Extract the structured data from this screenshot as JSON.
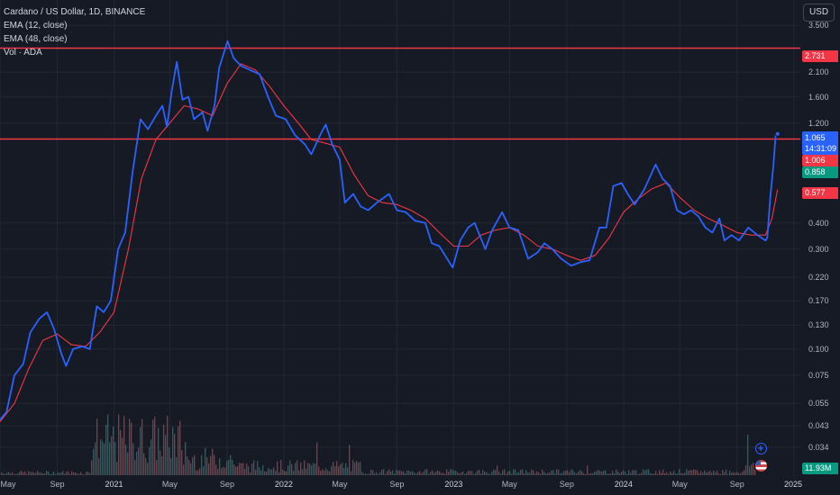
{
  "legend": {
    "title": "Cardano / US Dollar, 1D, BINANCE",
    "ema12": "EMA (12, close)",
    "ema48": "EMA (48, close)",
    "vol": "Vol · ADA"
  },
  "currency": "USD",
  "price_tags": {
    "resistance_upper": "2.731",
    "last_price": "1.065",
    "countdown": "14:31:09",
    "resistance_lower": "1.006",
    "ema12_value": "0.858",
    "ema48_value": "0.577",
    "volume": "11.93M"
  },
  "colors": {
    "background": "#161a25",
    "price_line": "#2962ff",
    "ema48_line": "#f23645",
    "horizontal_lines": "#f23645",
    "volume_up": "#26a69a",
    "volume_down": "#ef5350",
    "ema12_tag": "#089981"
  },
  "icons": [
    "plus-circle-icon",
    "us-flag-icon"
  ],
  "chart_data": {
    "type": "line",
    "title": "Cardano / US Dollar, 1D, BINANCE",
    "scale": "log",
    "ylim": [
      0.025,
      4.2
    ],
    "x_range": [
      "2020-05-01",
      "2025-01-15"
    ],
    "y_ticks": [
      "3.500",
      "2.100",
      "1.600",
      "1.200",
      "0.400",
      "0.300",
      "0.220",
      "0.170",
      "0.130",
      "0.100",
      "0.075",
      "0.055",
      "0.043",
      "0.034"
    ],
    "x_ticks": [
      {
        "label": "May",
        "date": "2020-05-01"
      },
      {
        "label": "Sep",
        "date": "2020-09-01"
      },
      {
        "label": "2021",
        "date": "2021-01-01"
      },
      {
        "label": "May",
        "date": "2021-05-01"
      },
      {
        "label": "Sep",
        "date": "2021-09-01"
      },
      {
        "label": "2022",
        "date": "2022-01-01"
      },
      {
        "label": "May",
        "date": "2022-05-01"
      },
      {
        "label": "Sep",
        "date": "2022-09-01"
      },
      {
        "label": "2023",
        "date": "2023-01-01"
      },
      {
        "label": "May",
        "date": "2023-05-01"
      },
      {
        "label": "Sep",
        "date": "2023-09-01"
      },
      {
        "label": "2024",
        "date": "2024-01-01"
      },
      {
        "label": "May",
        "date": "2024-05-01"
      },
      {
        "label": "Sep",
        "date": "2024-09-01"
      },
      {
        "label": "2025",
        "date": "2025-01-01"
      }
    ],
    "horizontal_lines": [
      2.731,
      1.006
    ],
    "series": [
      {
        "name": "ADA/USD",
        "color": "#2962ff",
        "points": [
          [
            "2020-05-01",
            0.046
          ],
          [
            "2020-05-15",
            0.05
          ],
          [
            "2020-06-01",
            0.075
          ],
          [
            "2020-06-20",
            0.085
          ],
          [
            "2020-07-05",
            0.12
          ],
          [
            "2020-07-25",
            0.14
          ],
          [
            "2020-08-10",
            0.15
          ],
          [
            "2020-08-25",
            0.125
          ],
          [
            "2020-09-10",
            0.095
          ],
          [
            "2020-09-20",
            0.083
          ],
          [
            "2020-10-05",
            0.1
          ],
          [
            "2020-10-25",
            0.103
          ],
          [
            "2020-11-10",
            0.1
          ],
          [
            "2020-11-25",
            0.16
          ],
          [
            "2020-12-10",
            0.15
          ],
          [
            "2020-12-25",
            0.17
          ],
          [
            "2021-01-10",
            0.3
          ],
          [
            "2021-01-25",
            0.36
          ],
          [
            "2021-02-10",
            0.7
          ],
          [
            "2021-02-27",
            1.25
          ],
          [
            "2021-03-15",
            1.12
          ],
          [
            "2021-04-01",
            1.3
          ],
          [
            "2021-04-15",
            1.45
          ],
          [
            "2021-04-25",
            1.15
          ],
          [
            "2021-05-05",
            1.7
          ],
          [
            "2021-05-16",
            2.35
          ],
          [
            "2021-05-28",
            1.55
          ],
          [
            "2021-06-10",
            1.6
          ],
          [
            "2021-06-22",
            1.25
          ],
          [
            "2021-07-10",
            1.35
          ],
          [
            "2021-07-21",
            1.1
          ],
          [
            "2021-08-05",
            1.45
          ],
          [
            "2021-08-15",
            2.2
          ],
          [
            "2021-09-02",
            2.95
          ],
          [
            "2021-09-15",
            2.45
          ],
          [
            "2021-10-01",
            2.25
          ],
          [
            "2021-10-20",
            2.15
          ],
          [
            "2021-11-10",
            2.05
          ],
          [
            "2021-11-28",
            1.6
          ],
          [
            "2021-12-15",
            1.3
          ],
          [
            "2022-01-05",
            1.25
          ],
          [
            "2022-01-25",
            1.05
          ],
          [
            "2022-02-15",
            0.95
          ],
          [
            "2022-03-01",
            0.85
          ],
          [
            "2022-03-20",
            1.05
          ],
          [
            "2022-04-01",
            1.18
          ],
          [
            "2022-04-15",
            0.95
          ],
          [
            "2022-05-01",
            0.8
          ],
          [
            "2022-05-12",
            0.5
          ],
          [
            "2022-05-30",
            0.55
          ],
          [
            "2022-06-15",
            0.48
          ],
          [
            "2022-07-01",
            0.46
          ],
          [
            "2022-07-20",
            0.5
          ],
          [
            "2022-08-15",
            0.55
          ],
          [
            "2022-09-01",
            0.46
          ],
          [
            "2022-09-20",
            0.45
          ],
          [
            "2022-10-10",
            0.41
          ],
          [
            "2022-11-01",
            0.4
          ],
          [
            "2022-11-15",
            0.32
          ],
          [
            "2022-12-01",
            0.31
          ],
          [
            "2022-12-30",
            0.245
          ],
          [
            "2023-01-15",
            0.33
          ],
          [
            "2023-02-01",
            0.38
          ],
          [
            "2023-02-15",
            0.4
          ],
          [
            "2023-03-10",
            0.3
          ],
          [
            "2023-03-25",
            0.37
          ],
          [
            "2023-04-15",
            0.45
          ],
          [
            "2023-05-01",
            0.38
          ],
          [
            "2023-05-20",
            0.37
          ],
          [
            "2023-06-10",
            0.27
          ],
          [
            "2023-07-01",
            0.29
          ],
          [
            "2023-07-15",
            0.32
          ],
          [
            "2023-08-01",
            0.3
          ],
          [
            "2023-08-20",
            0.27
          ],
          [
            "2023-09-10",
            0.25
          ],
          [
            "2023-10-01",
            0.26
          ],
          [
            "2023-10-20",
            0.265
          ],
          [
            "2023-11-10",
            0.38
          ],
          [
            "2023-11-25",
            0.38
          ],
          [
            "2023-12-10",
            0.6
          ],
          [
            "2023-12-28",
            0.62
          ],
          [
            "2024-01-10",
            0.55
          ],
          [
            "2024-01-25",
            0.49
          ],
          [
            "2024-02-15",
            0.58
          ],
          [
            "2024-03-10",
            0.76
          ],
          [
            "2024-03-25",
            0.65
          ],
          [
            "2024-04-10",
            0.6
          ],
          [
            "2024-04-25",
            0.46
          ],
          [
            "2024-05-10",
            0.44
          ],
          [
            "2024-05-25",
            0.46
          ],
          [
            "2024-06-10",
            0.43
          ],
          [
            "2024-06-25",
            0.38
          ],
          [
            "2024-07-10",
            0.36
          ],
          [
            "2024-07-25",
            0.42
          ],
          [
            "2024-08-05",
            0.33
          ],
          [
            "2024-08-20",
            0.35
          ],
          [
            "2024-09-05",
            0.33
          ],
          [
            "2024-09-25",
            0.38
          ],
          [
            "2024-10-15",
            0.35
          ],
          [
            "2024-11-01",
            0.33
          ],
          [
            "2024-11-05",
            0.34
          ],
          [
            "2024-11-12",
            0.55
          ],
          [
            "2024-11-18",
            0.75
          ],
          [
            "2024-11-23",
            1.05
          ],
          [
            "2024-11-27",
            1.065
          ]
        ]
      },
      {
        "name": "EMA (48, close)",
        "color": "#f23645",
        "points": [
          [
            "2020-05-01",
            0.045
          ],
          [
            "2020-06-01",
            0.055
          ],
          [
            "2020-07-01",
            0.08
          ],
          [
            "2020-08-01",
            0.11
          ],
          [
            "2020-09-01",
            0.118
          ],
          [
            "2020-10-01",
            0.105
          ],
          [
            "2020-11-01",
            0.103
          ],
          [
            "2020-12-01",
            0.12
          ],
          [
            "2021-01-01",
            0.15
          ],
          [
            "2021-02-01",
            0.3
          ],
          [
            "2021-03-01",
            0.65
          ],
          [
            "2021-04-01",
            1.0
          ],
          [
            "2021-05-01",
            1.2
          ],
          [
            "2021-06-01",
            1.45
          ],
          [
            "2021-07-01",
            1.4
          ],
          [
            "2021-08-01",
            1.3
          ],
          [
            "2021-09-01",
            1.85
          ],
          [
            "2021-10-01",
            2.3
          ],
          [
            "2021-11-01",
            2.15
          ],
          [
            "2021-12-01",
            1.8
          ],
          [
            "2022-01-01",
            1.45
          ],
          [
            "2022-02-01",
            1.2
          ],
          [
            "2022-03-01",
            1.0
          ],
          [
            "2022-04-01",
            0.96
          ],
          [
            "2022-05-01",
            0.92
          ],
          [
            "2022-06-01",
            0.68
          ],
          [
            "2022-07-01",
            0.54
          ],
          [
            "2022-08-01",
            0.5
          ],
          [
            "2022-09-01",
            0.49
          ],
          [
            "2022-10-01",
            0.46
          ],
          [
            "2022-11-01",
            0.42
          ],
          [
            "2022-12-01",
            0.36
          ],
          [
            "2023-01-01",
            0.31
          ],
          [
            "2023-02-01",
            0.31
          ],
          [
            "2023-03-01",
            0.35
          ],
          [
            "2023-04-01",
            0.37
          ],
          [
            "2023-05-01",
            0.38
          ],
          [
            "2023-06-01",
            0.35
          ],
          [
            "2023-07-01",
            0.31
          ],
          [
            "2023-08-01",
            0.3
          ],
          [
            "2023-09-01",
            0.28
          ],
          [
            "2023-10-01",
            0.265
          ],
          [
            "2023-11-01",
            0.28
          ],
          [
            "2023-12-01",
            0.34
          ],
          [
            "2024-01-01",
            0.45
          ],
          [
            "2024-02-01",
            0.52
          ],
          [
            "2024-03-01",
            0.58
          ],
          [
            "2024-04-01",
            0.62
          ],
          [
            "2024-05-01",
            0.53
          ],
          [
            "2024-06-01",
            0.46
          ],
          [
            "2024-07-01",
            0.42
          ],
          [
            "2024-08-01",
            0.39
          ],
          [
            "2024-09-01",
            0.36
          ],
          [
            "2024-10-01",
            0.35
          ],
          [
            "2024-11-01",
            0.35
          ],
          [
            "2024-11-15",
            0.42
          ],
          [
            "2024-11-27",
            0.577
          ]
        ]
      }
    ]
  }
}
